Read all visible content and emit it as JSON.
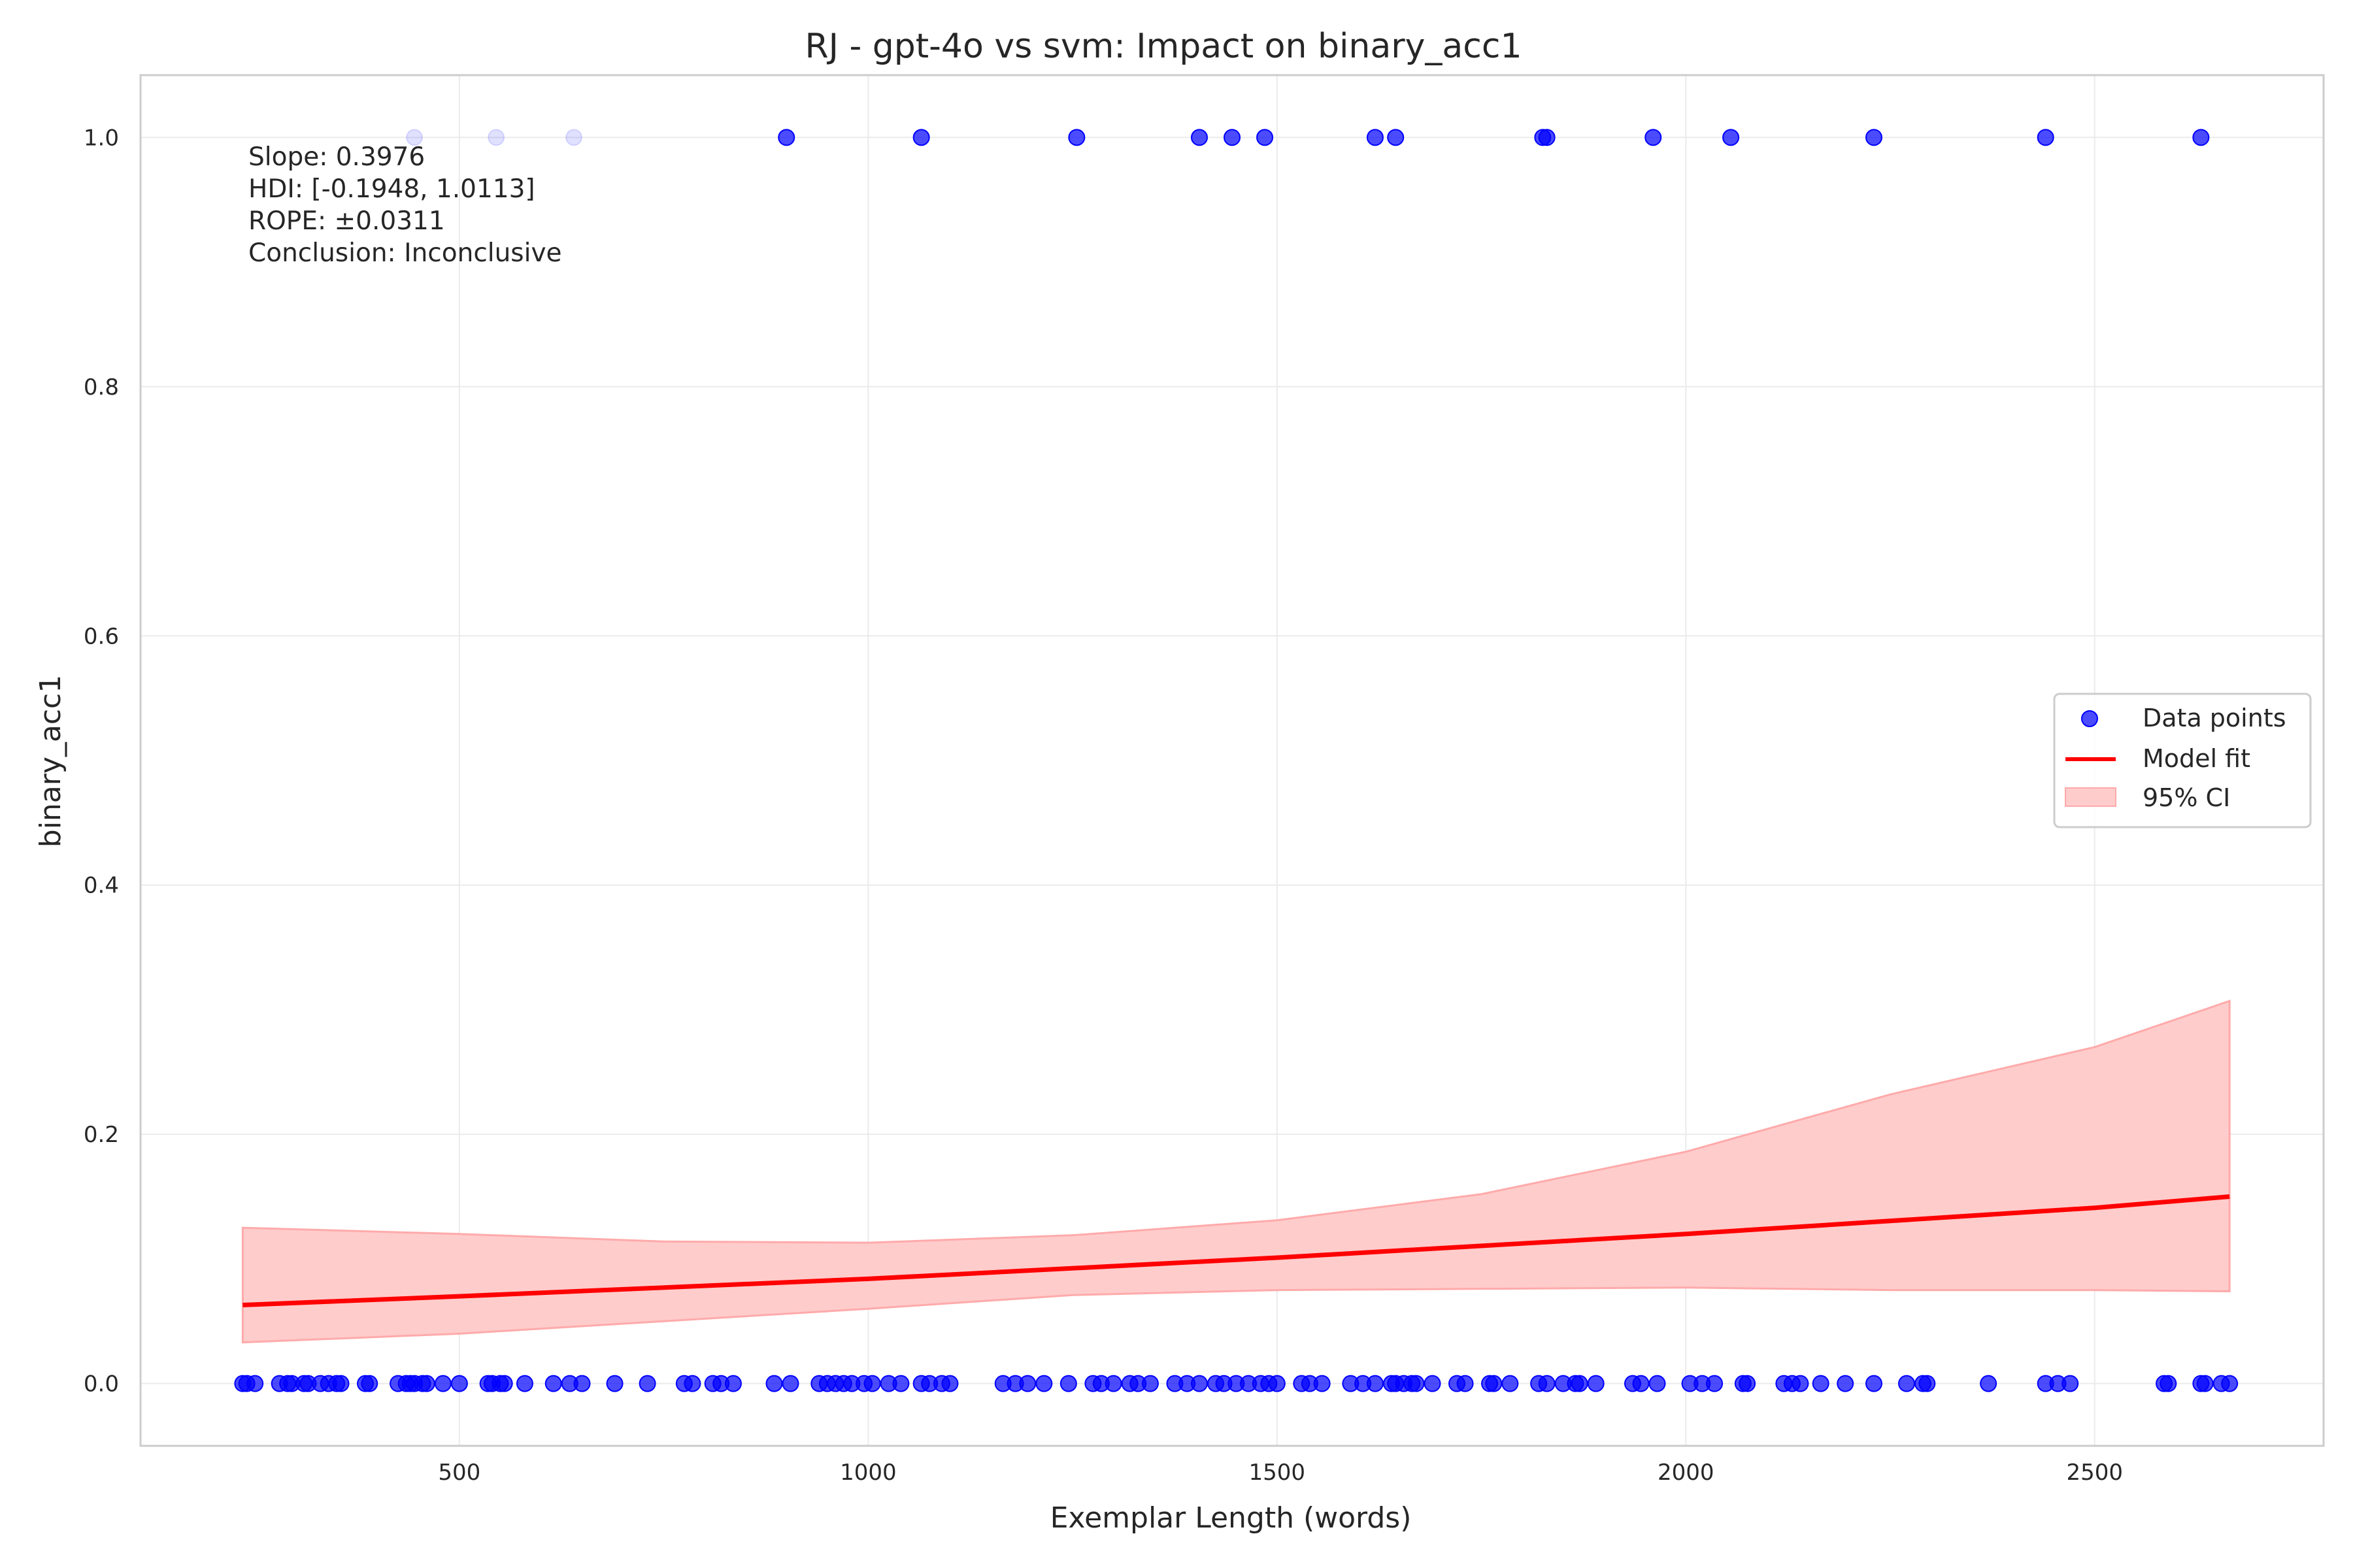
{
  "chart_data": {
    "type": "scatter",
    "title": "RJ - gpt-4o vs svm: Impact on binary_acc1",
    "xlabel": "Exemplar Length (words)",
    "ylabel": "binary_acc1",
    "xlim": [
      110,
      2780
    ],
    "ylim": [
      -0.05,
      1.05
    ],
    "xticks": [
      500,
      1000,
      1500,
      2000,
      2500
    ],
    "yticks": [
      0.0,
      0.2,
      0.4,
      0.6,
      0.8,
      1.0
    ],
    "xtick_labels": [
      "500",
      "1000",
      "1500",
      "2000",
      "2500"
    ],
    "ytick_labels": [
      "0.0",
      "0.2",
      "0.4",
      "0.6",
      "0.8",
      "1.0"
    ],
    "grid": true,
    "legend_position": "center-right",
    "colors": {
      "points": "#0000ff",
      "fit": "#ff0000",
      "ci_fill": "#ffcccc",
      "ci_edge": "#ffaaaa"
    },
    "annotation": [
      "Slope: 0.3976",
      "HDI: [-0.1948, 1.0113]",
      "ROPE: ±0.0311",
      "Conclusion: Inconclusive"
    ],
    "legend": [
      {
        "label": "Data points",
        "kind": "point"
      },
      {
        "label": "Model fit",
        "kind": "line"
      },
      {
        "label": "95% CI",
        "kind": "band"
      }
    ],
    "series": [
      {
        "name": "Data points",
        "kind": "scatter",
        "points_y1": [
          445,
          545,
          640,
          900,
          1065,
          1255,
          1405,
          1445,
          1485,
          1620,
          1645,
          1825,
          1830,
          1960,
          2055,
          2230,
          2440,
          2630
        ],
        "faded_y1": [
          445,
          545,
          640
        ],
        "points_y0": [
          235,
          240,
          250,
          280,
          290,
          295,
          310,
          315,
          330,
          340,
          350,
          355,
          385,
          390,
          425,
          435,
          440,
          445,
          455,
          460,
          480,
          500,
          535,
          540,
          550,
          555,
          580,
          615,
          635,
          650,
          690,
          730,
          775,
          785,
          810,
          820,
          835,
          885,
          905,
          940,
          950,
          960,
          970,
          980,
          995,
          1005,
          1025,
          1040,
          1065,
          1075,
          1090,
          1100,
          1165,
          1180,
          1195,
          1215,
          1245,
          1275,
          1285,
          1300,
          1320,
          1330,
          1345,
          1375,
          1390,
          1405,
          1425,
          1435,
          1450,
          1465,
          1480,
          1490,
          1500,
          1530,
          1540,
          1555,
          1590,
          1605,
          1620,
          1640,
          1645,
          1655,
          1665,
          1670,
          1690,
          1720,
          1730,
          1760,
          1765,
          1785,
          1820,
          1830,
          1850,
          1865,
          1870,
          1890,
          1935,
          1945,
          1965,
          2005,
          2020,
          2035,
          2070,
          2075,
          2120,
          2130,
          2140,
          2165,
          2195,
          2230,
          2270,
          2290,
          2295,
          2370,
          2440,
          2455,
          2470,
          2585,
          2590,
          2630,
          2635,
          2655,
          2665
        ]
      },
      {
        "name": "Model fit",
        "kind": "line",
        "x": [
          235,
          500,
          1000,
          1500,
          2000,
          2500,
          2665
        ],
        "y": [
          0.063,
          0.07,
          0.084,
          0.101,
          0.12,
          0.141,
          0.15
        ]
      },
      {
        "name": "95% CI",
        "kind": "band",
        "x": [
          235,
          500,
          750,
          1000,
          1250,
          1500,
          1750,
          2000,
          2250,
          2500,
          2665
        ],
        "upper": [
          0.125,
          0.12,
          0.114,
          0.113,
          0.119,
          0.131,
          0.152,
          0.186,
          0.232,
          0.27,
          0.307
        ],
        "lower": [
          0.033,
          0.04,
          0.05,
          0.06,
          0.071,
          0.075,
          0.076,
          0.077,
          0.075,
          0.075,
          0.074
        ]
      }
    ]
  }
}
